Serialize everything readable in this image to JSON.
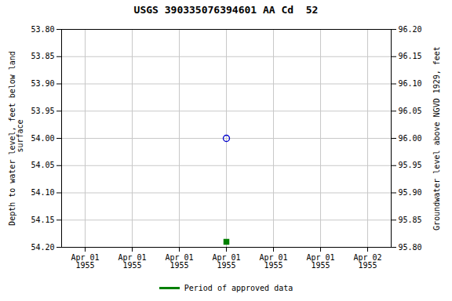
{
  "chart_data": {
    "type": "scatter",
    "title": "USGS 390335076394601 AA Cd  52",
    "ylabel": "Depth to water level, feet below land\n surface",
    "y2label": "Groundwater level above NGVD 1929, feet",
    "categories": [
      "Apr 01\n1955",
      "Apr 01\n1955",
      "Apr 01\n1955",
      "Apr 01\n1955",
      "Apr 01\n1955",
      "Apr 01\n1955",
      "Apr 02\n1955"
    ],
    "series": [
      {
        "color": "#0000cc",
        "marker": "circle-open",
        "values": [
          null,
          null,
          null,
          54.0,
          null,
          null,
          null
        ]
      },
      {
        "name": "Period of approved data",
        "color": "#008000",
        "marker": "square",
        "values": [
          null,
          null,
          null,
          54.19,
          null,
          null,
          null
        ]
      }
    ],
    "ylim": [
      54.2,
      53.8
    ],
    "yticks": [
      {
        "value": 53.8,
        "label": "53.80"
      },
      {
        "value": 53.85,
        "label": "53.85"
      },
      {
        "value": 53.9,
        "label": "53.90"
      },
      {
        "value": 53.95,
        "label": "53.95"
      },
      {
        "value": 54.0,
        "label": "54.00"
      },
      {
        "value": 54.05,
        "label": "54.05"
      },
      {
        "value": 54.1,
        "label": "54.10"
      },
      {
        "value": 54.15,
        "label": "54.15"
      },
      {
        "value": 54.2,
        "label": "54.20"
      }
    ],
    "y2lim": [
      95.8,
      96.2
    ],
    "y2ticks": [
      {
        "value": 96.2,
        "label": "96.20"
      },
      {
        "value": 96.15,
        "label": "96.15"
      },
      {
        "value": 96.1,
        "label": "96.10"
      },
      {
        "value": 96.05,
        "label": "96.05"
      },
      {
        "value": 96.0,
        "label": "96.00"
      },
      {
        "value": 95.95,
        "label": "95.95"
      },
      {
        "value": 95.9,
        "label": "95.90"
      },
      {
        "value": 95.85,
        "label": "95.85"
      },
      {
        "value": 95.8,
        "label": "95.80"
      }
    ],
    "grid": true,
    "legend": "bottom"
  }
}
